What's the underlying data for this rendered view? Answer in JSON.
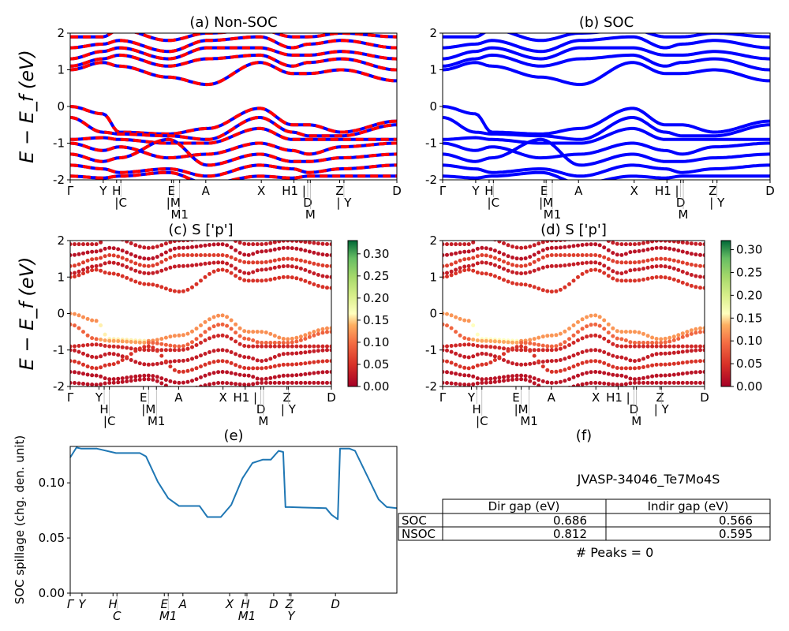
{
  "chart_data": [
    {
      "id": "a",
      "type": "line",
      "title": "(a) Non-SOC",
      "ylabel": "E − E_f (eV)",
      "ylim": [
        -2,
        2
      ],
      "yticks": [
        -2,
        -1,
        0,
        1,
        2
      ],
      "style": "dashed red/blue",
      "colors": [
        "#ff0000",
        "#0000ff"
      ],
      "kticks": [
        [
          0,
          "Γ"
        ],
        [
          0.101,
          "Y"
        ],
        [
          0.142,
          "H"
        ],
        [
          0.155,
          "|C"
        ],
        [
          0.31,
          "E"
        ],
        [
          0.316,
          "|M"
        ],
        [
          0.335,
          "M1"
        ],
        [
          0.415,
          "A"
        ],
        [
          0.585,
          "X"
        ],
        [
          0.685,
          "H1 |"
        ],
        [
          0.727,
          "D"
        ],
        [
          0.735,
          "M"
        ],
        [
          0.825,
          "Z"
        ],
        [
          0.838,
          "| Y"
        ],
        [
          1.0,
          "D"
        ]
      ]
    },
    {
      "id": "b",
      "type": "line",
      "title": "(b) SOC",
      "ylim": [
        -2,
        2
      ],
      "yticks": [
        -2,
        -1,
        0,
        1,
        2
      ],
      "colors": [
        "#0000ff"
      ],
      "kticks": [
        [
          0,
          "Γ"
        ],
        [
          0.101,
          "Y"
        ],
        [
          0.142,
          "H"
        ],
        [
          0.155,
          "|C"
        ],
        [
          0.31,
          "E"
        ],
        [
          0.316,
          "|M"
        ],
        [
          0.335,
          "M1"
        ],
        [
          0.415,
          "A"
        ],
        [
          0.585,
          "X"
        ],
        [
          0.685,
          "H1 |"
        ],
        [
          0.727,
          "D"
        ],
        [
          0.735,
          "M"
        ],
        [
          0.825,
          "Z"
        ],
        [
          0.838,
          "| Y"
        ],
        [
          1.0,
          "D"
        ]
      ]
    },
    {
      "id": "c",
      "type": "scatter",
      "title": "(c)  S ['p']",
      "ylabel": "E − E_f (eV)",
      "ylim": [
        -2,
        2
      ],
      "yticks": [
        -2,
        -1,
        0,
        1,
        2
      ],
      "colorbar": {
        "colormap": "RdYlGn",
        "range": [
          0,
          0.33
        ],
        "ticks": [
          "0.00",
          "0.05",
          "0.10",
          "0.15",
          "0.20",
          "0.25",
          "0.30"
        ]
      },
      "kticks": [
        [
          0,
          "Γ"
        ],
        [
          0.11,
          "Y"
        ],
        [
          0.13,
          "H"
        ],
        [
          0.15,
          "|C"
        ],
        [
          0.28,
          "E"
        ],
        [
          0.3,
          "|M"
        ],
        [
          0.33,
          "M1"
        ],
        [
          0.415,
          "A"
        ],
        [
          0.585,
          "X"
        ],
        [
          0.67,
          "H1 |"
        ],
        [
          0.73,
          "D"
        ],
        [
          0.74,
          "M"
        ],
        [
          0.83,
          "Z"
        ],
        [
          0.835,
          "| Y"
        ],
        [
          1.0,
          "D"
        ]
      ]
    },
    {
      "id": "d",
      "type": "scatter",
      "title": "(d) S ['p']",
      "ylim": [
        -2,
        2
      ],
      "yticks": [
        -2,
        -1,
        0,
        1,
        2
      ],
      "colorbar": {
        "colormap": "RdYlGn",
        "range": [
          0,
          0.32
        ],
        "ticks": [
          "0.00",
          "0.05",
          "0.10",
          "0.15",
          "0.20",
          "0.25",
          "0.30"
        ]
      },
      "kticks": [
        [
          0,
          "Γ"
        ],
        [
          0.11,
          "Y"
        ],
        [
          0.13,
          "H"
        ],
        [
          0.15,
          "|C"
        ],
        [
          0.28,
          "E"
        ],
        [
          0.3,
          "|M"
        ],
        [
          0.33,
          "M1"
        ],
        [
          0.415,
          "A"
        ],
        [
          0.585,
          "X"
        ],
        [
          0.67,
          "H1 |"
        ],
        [
          0.73,
          "D"
        ],
        [
          0.74,
          "M"
        ],
        [
          0.83,
          "Z"
        ],
        [
          0.835,
          "| Y"
        ],
        [
          1.0,
          "D"
        ]
      ]
    },
    {
      "id": "e",
      "type": "line",
      "title": "(e)",
      "ylabel": "SOC spillage (chg. den. unit)",
      "ylim": [
        0,
        0.133
      ],
      "yticks": [
        "0.00",
        "0.05",
        "0.10"
      ],
      "color": "#1f77b4",
      "kticks": [
        [
          0,
          "Γ"
        ],
        [
          0.036,
          "Y"
        ],
        [
          0.131,
          "H"
        ],
        [
          0.143,
          "C"
        ],
        [
          0.288,
          "E"
        ],
        [
          0.3,
          "M1"
        ],
        [
          0.345,
          "A"
        ],
        [
          0.488,
          "X"
        ],
        [
          0.536,
          "H"
        ],
        [
          0.541,
          "M1"
        ],
        [
          0.623,
          "D"
        ],
        [
          0.671,
          "Z"
        ],
        [
          0.676,
          "Y"
        ],
        [
          0.812,
          "D"
        ]
      ],
      "x": [
        0,
        0.019,
        0.034,
        0.082,
        0.14,
        0.213,
        0.232,
        0.268,
        0.3,
        0.333,
        0.396,
        0.42,
        0.461,
        0.493,
        0.527,
        0.558,
        0.589,
        0.614,
        0.638,
        0.652,
        0.659,
        0.671,
        0.783,
        0.8,
        0.819,
        0.826,
        0.855,
        0.872,
        0.913,
        0.944,
        0.969,
        1.0
      ],
      "y": [
        0.123,
        0.132,
        0.131,
        0.131,
        0.127,
        0.127,
        0.124,
        0.101,
        0.086,
        0.079,
        0.079,
        0.069,
        0.069,
        0.08,
        0.104,
        0.118,
        0.121,
        0.121,
        0.129,
        0.128,
        0.078,
        0.078,
        0.077,
        0.071,
        0.067,
        0.131,
        0.131,
        0.129,
        0.104,
        0.085,
        0.078,
        0.077
      ]
    }
  ],
  "bands": {
    "nodes": [
      0,
      0.1,
      0.15,
      0.3,
      0.42,
      0.58,
      0.68,
      0.73,
      0.83,
      1.0
    ],
    "energies": [
      [
        0,
        -0.2,
        -0.7,
        -0.75,
        -0.6,
        -0.05,
        -0.5,
        -0.5,
        -0.7,
        -0.4
      ],
      [
        -0.3,
        -0.7,
        -0.75,
        -0.8,
        -0.9,
        -0.3,
        -0.7,
        -0.8,
        -0.8,
        -0.5
      ],
      [
        -0.9,
        -0.85,
        -0.9,
        -1.0,
        -1.0,
        -0.6,
        -0.9,
        -0.9,
        -0.9,
        -0.9
      ],
      [
        -1.0,
        -1.2,
        -1.1,
        -1.4,
        -1.3,
        -1.0,
        -1.2,
        -1.3,
        -1.1,
        -1.0
      ],
      [
        -1.3,
        -1.5,
        -1.4,
        -0.9,
        -1.6,
        -1.3,
        -1.5,
        -1.5,
        -1.4,
        -1.3
      ],
      [
        -1.6,
        -1.7,
        -1.8,
        -1.7,
        -1.9,
        -1.6,
        -1.7,
        -1.8,
        -1.7,
        -1.6
      ],
      [
        -1.9,
        -1.95,
        -1.9,
        -1.8,
        -2.1,
        -1.9,
        -1.95,
        -1.9,
        -1.9,
        -1.9
      ],
      [
        1.0,
        1.2,
        1.1,
        0.8,
        0.6,
        1.2,
        0.9,
        0.9,
        1.0,
        0.7
      ],
      [
        1.1,
        1.3,
        1.4,
        1.1,
        1.3,
        1.4,
        1.1,
        1.2,
        1.3,
        1.0
      ],
      [
        1.3,
        1.5,
        1.6,
        1.3,
        1.6,
        1.6,
        1.4,
        1.4,
        1.5,
        1.3
      ],
      [
        1.6,
        1.7,
        1.8,
        1.5,
        1.8,
        1.9,
        1.6,
        1.7,
        1.8,
        1.6
      ],
      [
        1.9,
        1.9,
        2.1,
        1.8,
        2.0,
        2.1,
        1.9,
        1.9,
        2.0,
        1.9
      ]
    ],
    "weights": [
      0.12,
      0.09,
      0.04,
      0.03,
      0.05,
      0.02,
      0.02,
      0.05,
      0.03,
      0.06,
      0.02,
      0.03
    ]
  },
  "panel_f": {
    "title": "(f)",
    "material": "JVASP-34046_Te7Mo4S",
    "table": {
      "columns": [
        "",
        "Dir gap (eV)",
        "Indir gap (eV)"
      ],
      "rows": [
        [
          "SOC",
          "0.686",
          "0.566"
        ],
        [
          "NSOC",
          "0.812",
          "0.595"
        ]
      ]
    },
    "peaks": "# Peaks = 0"
  }
}
